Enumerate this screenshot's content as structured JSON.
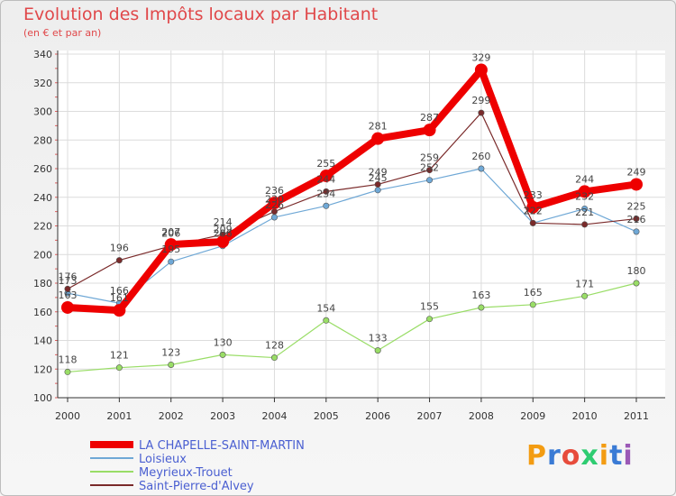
{
  "title": "Evolution des Impôts locaux par Habitant",
  "subtitle": "(en € et par an)",
  "logo": {
    "text": "Proxiti"
  },
  "chart_data": {
    "type": "line",
    "title": "Evolution des Impôts locaux par Habitant",
    "subtitle": "(en € et par an)",
    "xlabel": "",
    "ylabel": "",
    "x": [
      "2000",
      "2001",
      "2002",
      "2003",
      "2004",
      "2005",
      "2006",
      "2007",
      "2008",
      "2009",
      "2010",
      "2011"
    ],
    "ylim": [
      100,
      340
    ],
    "yticks": [
      100,
      120,
      140,
      160,
      180,
      200,
      220,
      240,
      260,
      280,
      300,
      320,
      340
    ],
    "grid": true,
    "legend_position": "bottom-left",
    "series": [
      {
        "name": "LA CHAPELLE-SAINT-MARTIN",
        "color": "#ee0000",
        "values": [
          163,
          161,
          207,
          209,
          236,
          255,
          281,
          287,
          329,
          233,
          244,
          249
        ],
        "labels": [
          "163",
          "161",
          "207",
          "209",
          "236",
          "255",
          "281",
          "287",
          "329",
          "233",
          "244",
          "249"
        ]
      },
      {
        "name": "Loisieux",
        "color": "#6fa8d6",
        "values": [
          173,
          166,
          195,
          206,
          226,
          234,
          245,
          252,
          260,
          222,
          232,
          216
        ],
        "labels": [
          "173",
          "166",
          "195",
          "206",
          "226",
          "234",
          "245",
          "252",
          "260",
          "222",
          "232",
          "216"
        ]
      },
      {
        "name": "Meyrieux-Trouet",
        "color": "#99dd66",
        "values": [
          118,
          121,
          123,
          130,
          128,
          154,
          133,
          155,
          163,
          165,
          171,
          180
        ],
        "labels": [
          "118",
          "121",
          "123",
          "130",
          "128",
          "154",
          "133",
          "155",
          "163",
          "165",
          "171",
          "180"
        ]
      },
      {
        "name": "Saint-Pierre-d'Alvey",
        "color": "#7a2a2a",
        "values": [
          176,
          196,
          206,
          214,
          230,
          244,
          249,
          259,
          299,
          222,
          221,
          225
        ],
        "labels": [
          "176",
          "196",
          "206",
          "214",
          "230",
          "244",
          "249",
          "259",
          "299",
          "222",
          "221",
          "225"
        ]
      }
    ]
  }
}
